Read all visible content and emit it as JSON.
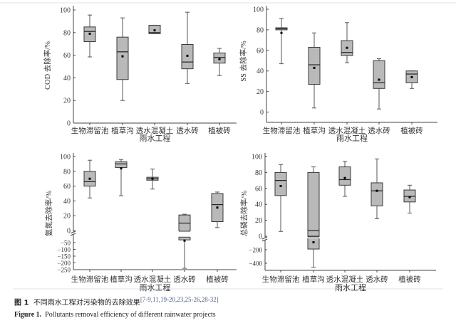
{
  "figure": {
    "caption_cn_label": "图 1",
    "caption_cn": "不同雨水工程对污染物的去除效果",
    "caption_refs": "[7-9,11,19-20,23,25-26,28-32]",
    "caption_en_label": "Figure 1.",
    "caption_en": "Pollutants removal efficiency of different rainwater projects"
  },
  "chart_data": [
    {
      "type": "box",
      "ylabel": "COD 去除率/%",
      "xlabel": "雨水工程",
      "categories": [
        "生物滞留池",
        "植草沟",
        "透水混凝土",
        "透水砖",
        "植被砖"
      ],
      "ylim": [
        0,
        100
      ],
      "yticks": [
        0,
        20,
        40,
        60,
        80,
        100
      ],
      "axis_break": null,
      "boxes": [
        {
          "min": 58.5,
          "q1": 72,
          "median": 81,
          "q3": 85,
          "max": 95.5,
          "mean": 79
        },
        {
          "min": 20,
          "q1": 38.5,
          "median": 63,
          "q3": 76,
          "max": 93,
          "mean": 59
        },
        {
          "min": 79,
          "q1": 79,
          "median": 80,
          "q3": 86.5,
          "max": 86.5,
          "mean": 82
        },
        {
          "min": 35,
          "q1": 48,
          "median": 54,
          "q3": 69.5,
          "max": 98,
          "mean": 59.5
        },
        {
          "min": 42,
          "q1": 53,
          "median": 58,
          "q3": 62,
          "max": 66,
          "mean": 56.5
        }
      ]
    },
    {
      "type": "box",
      "ylabel": "SS 去除率/%",
      "xlabel": "雨水工程",
      "categories": [
        "生物滞留池",
        "植草沟",
        "透水混凝土",
        "透水砖",
        "植被砖"
      ],
      "ylim": [
        -10,
        100
      ],
      "yticks": [
        0,
        20,
        40,
        60,
        80,
        100
      ],
      "axis_break": null,
      "boxes": [
        {
          "min": 47,
          "q1": 80,
          "median": 81,
          "q3": 82,
          "max": 91,
          "mean": 77
        },
        {
          "min": 4,
          "q1": 27,
          "median": 46,
          "q3": 63,
          "max": 77,
          "mean": 43
        },
        {
          "min": 48,
          "q1": 55,
          "median": 58,
          "q3": 69.5,
          "max": 87,
          "mean": 62.5
        },
        {
          "min": 3,
          "q1": 23,
          "median": 28.5,
          "q3": 50,
          "max": 52,
          "mean": 31.5
        },
        {
          "min": 23,
          "q1": 28.5,
          "median": 37,
          "q3": 40,
          "max": 40,
          "mean": 34
        }
      ]
    },
    {
      "type": "box",
      "ylabel": "氨氮去除率/%",
      "xlabel": "雨水工程",
      "categories": [
        "生物滞留池",
        "植草沟",
        "透水混凝土",
        "透水砖",
        "植被砖"
      ],
      "ylim": [
        -250,
        100
      ],
      "yticks": [
        -250,
        -200,
        -150,
        -100,
        -50,
        0,
        20,
        40,
        60,
        80,
        100
      ],
      "axis_break": [
        -20,
        0
      ],
      "boxes": [
        {
          "min": 44,
          "q1": 60,
          "median": 66,
          "q3": 80,
          "max": 95,
          "mean": 70
        },
        {
          "min": 47,
          "q1": 85,
          "median": 90,
          "q3": 93,
          "max": 96,
          "mean": 84
        },
        {
          "min": 56,
          "q1": 68,
          "median": 70,
          "q3": 72,
          "max": 83,
          "mean": 70
        },
        {
          "min": -240,
          "q1": -30,
          "median": 10,
          "q3": 21,
          "max": 22,
          "mean": -35
        },
        {
          "min": 4,
          "q1": 12,
          "median": 35,
          "q3": 50,
          "max": 52,
          "mean": 31
        }
      ]
    },
    {
      "type": "box",
      "ylabel": "总磷去除率/%",
      "xlabel": "雨水工程",
      "categories": [
        "生物滞留池",
        "植草沟",
        "透水混凝土",
        "透水砖",
        "植被砖"
      ],
      "ylim": [
        -480,
        100
      ],
      "yticks": [
        -400,
        -200,
        0,
        20,
        40,
        60,
        80,
        100
      ],
      "axis_break": [
        -20,
        0
      ],
      "boxes": [
        {
          "min": 6,
          "q1": 51,
          "median": 70,
          "q3": 80,
          "max": 90,
          "mean": 63
        },
        {
          "min": -460,
          "q1": -190,
          "median": 7,
          "q3": 80,
          "max": 87,
          "mean": -90
        },
        {
          "min": 50,
          "q1": 64,
          "median": 71,
          "q3": 87,
          "max": 94,
          "mean": 73
        },
        {
          "min": 22,
          "q1": 38,
          "median": 57,
          "q3": 67,
          "max": 97,
          "mean": 57
        },
        {
          "min": 29,
          "q1": 43,
          "median": 50,
          "q3": 58,
          "max": 64,
          "mean": 49
        }
      ]
    }
  ],
  "colors": {
    "box_fill": "#b9b9b9",
    "box_stroke": "#3a3a3a",
    "whisker": "#555555",
    "mean": "#000000",
    "axis": "#444444"
  }
}
